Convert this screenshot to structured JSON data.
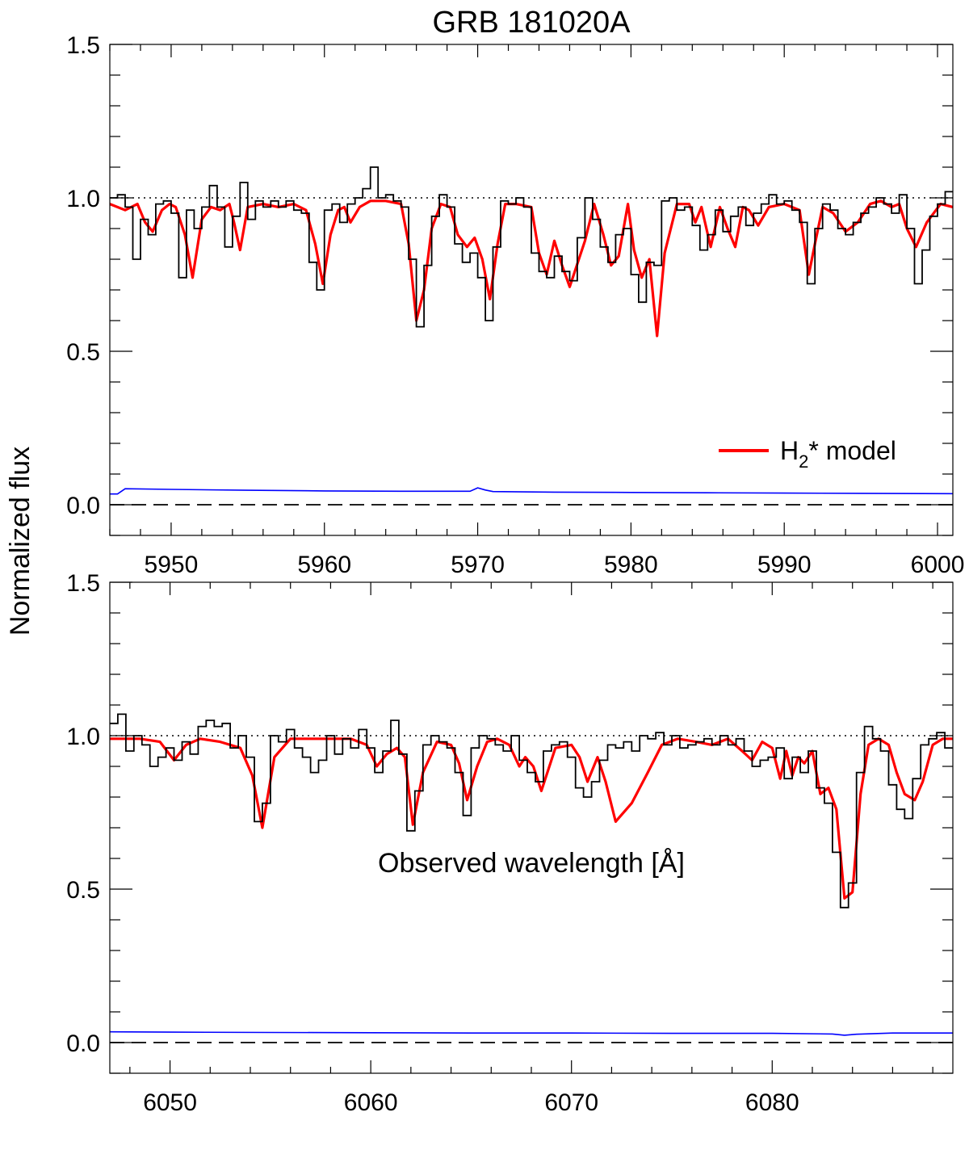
{
  "figure": {
    "title": "GRB 181020A",
    "ylabel": "Normalized flux",
    "xlabel": "Observed wavelength [Å]"
  },
  "legend": {
    "label_prefix": "H",
    "label_sub": "2",
    "label_suffix": "* model",
    "color": "#ff0000"
  },
  "colors": {
    "data": "#000000",
    "model": "#ff0000",
    "error": "#0000ff"
  },
  "chart_data": [
    {
      "type": "line",
      "xlim": [
        5946,
        6001
      ],
      "ylim": [
        -0.1,
        1.5
      ],
      "xticks": [
        5950,
        5960,
        5970,
        5980,
        5990,
        6000
      ],
      "yticks": [
        0.0,
        0.5,
        1.0,
        1.5
      ],
      "ytick_labels": [
        "0.0",
        "0.5",
        "1.0",
        "1.5"
      ],
      "continuum_level": 1.0,
      "zero_level": 0.0,
      "series": [
        {
          "name": "H2* model",
          "style": "model",
          "x": [
            5946.0,
            5947.0,
            5947.8,
            5948.3,
            5948.8,
            5949.4,
            5949.9,
            5950.3,
            5950.9,
            5951.4,
            5952.0,
            5952.6,
            5953.2,
            5953.8,
            5954.1,
            5954.5,
            5955.0,
            5956.0,
            5957.0,
            5958.0,
            5958.8,
            5959.4,
            5959.9,
            5960.4,
            5960.9,
            5961.3,
            5961.7,
            5962.3,
            5963.0,
            5964.0,
            5965.0,
            5965.5,
            5966.0,
            5966.5,
            5967.0,
            5967.6,
            5968.2,
            5968.7,
            5969.3,
            5969.8,
            5970.3,
            5970.8,
            5971.3,
            5971.8,
            5972.5,
            5973.5,
            5974.0,
            5974.5,
            5975.0,
            5975.5,
            5976.0,
            5977.0,
            5977.6,
            5978.2,
            5978.7,
            5979.2,
            5979.8,
            5980.2,
            5980.7,
            5981.2,
            5981.7,
            5982.2,
            5983.0,
            5983.8,
            5984.2,
            5984.6,
            5985.2,
            5985.8,
            5986.3,
            5986.8,
            5987.3,
            5987.7,
            5988.3,
            5989.0,
            5990.0,
            5991.0,
            5991.6,
            5992.0,
            5992.5,
            5993.2,
            5994.0,
            5994.8,
            5995.6,
            5996.3,
            5997.0,
            5997.5,
            5998.0,
            5998.6,
            5999.3,
            6000.2,
            6001.0
          ],
          "y": [
            0.98,
            0.96,
            0.98,
            0.92,
            0.89,
            0.96,
            0.98,
            0.97,
            0.88,
            0.74,
            0.93,
            0.97,
            0.96,
            0.98,
            0.92,
            0.83,
            0.97,
            0.98,
            0.97,
            0.98,
            0.96,
            0.85,
            0.72,
            0.88,
            0.96,
            0.97,
            0.92,
            0.97,
            0.99,
            0.99,
            0.98,
            0.85,
            0.6,
            0.7,
            0.9,
            0.98,
            0.97,
            0.88,
            0.84,
            0.87,
            0.8,
            0.67,
            0.85,
            0.98,
            0.98,
            0.97,
            0.82,
            0.75,
            0.86,
            0.78,
            0.71,
            0.86,
            0.98,
            0.88,
            0.78,
            0.81,
            0.98,
            0.83,
            0.74,
            0.8,
            0.55,
            0.82,
            0.98,
            0.98,
            0.92,
            0.97,
            0.84,
            0.97,
            0.9,
            0.84,
            0.97,
            0.96,
            0.91,
            0.97,
            0.98,
            0.96,
            0.75,
            0.85,
            0.97,
            0.95,
            0.89,
            0.92,
            0.98,
            0.99,
            0.97,
            0.98,
            0.9,
            0.84,
            0.92,
            0.98,
            0.97
          ]
        },
        {
          "name": "",
          "style": "data",
          "x": [
            5946.0,
            5946.5,
            5947.0,
            5947.5,
            5948.0,
            5948.5,
            5949.0,
            5949.5,
            5950.0,
            5950.5,
            5951.0,
            5951.5,
            5952.0,
            5952.5,
            5953.0,
            5953.5,
            5954.0,
            5954.5,
            5955.0,
            5955.5,
            5956.0,
            5956.5,
            5957.0,
            5957.5,
            5958.0,
            5958.5,
            5959.0,
            5959.5,
            5960.0,
            5960.5,
            5961.0,
            5961.5,
            5962.0,
            5962.5,
            5963.0,
            5963.5,
            5964.0,
            5964.5,
            5965.0,
            5965.5,
            5966.0,
            5966.5,
            5967.0,
            5967.5,
            5968.0,
            5968.5,
            5969.0,
            5969.5,
            5970.0,
            5970.5,
            5971.0,
            5971.5,
            5972.0,
            5972.5,
            5973.0,
            5973.5,
            5974.0,
            5974.5,
            5975.0,
            5975.5,
            5976.0,
            5976.5,
            5977.0,
            5977.5,
            5978.0,
            5978.5,
            5979.0,
            5979.5,
            5980.0,
            5980.5,
            5981.0,
            5981.5,
            5982.0,
            5982.5,
            5983.0,
            5983.5,
            5984.0,
            5984.5,
            5985.0,
            5985.5,
            5986.0,
            5986.5,
            5987.0,
            5987.5,
            5988.0,
            5988.5,
            5989.0,
            5989.5,
            5990.0,
            5990.5,
            5991.0,
            5991.5,
            5992.0,
            5992.5,
            5993.0,
            5993.5,
            5994.0,
            5994.5,
            5995.0,
            5995.5,
            5996.0,
            5996.5,
            5997.0,
            5997.5,
            5998.0,
            5998.5,
            5999.0,
            5999.5,
            6000.0,
            6000.5
          ],
          "y": [
            1.0,
            1.01,
            0.97,
            0.8,
            0.93,
            0.88,
            0.98,
            0.99,
            0.95,
            0.74,
            0.96,
            0.9,
            0.97,
            1.04,
            0.97,
            0.84,
            0.94,
            1.05,
            0.93,
            0.99,
            0.97,
            0.99,
            0.97,
            0.99,
            0.96,
            0.95,
            0.79,
            0.7,
            0.96,
            0.98,
            0.92,
            0.98,
            1.0,
            1.03,
            1.1,
            1.0,
            1.01,
            0.99,
            0.97,
            0.8,
            0.58,
            0.78,
            0.94,
            1.01,
            0.97,
            0.85,
            0.79,
            0.82,
            0.74,
            0.6,
            0.84,
            0.99,
            0.98,
            1.0,
            0.97,
            0.82,
            0.76,
            0.74,
            0.81,
            0.76,
            0.73,
            0.87,
            1.0,
            0.93,
            0.84,
            0.79,
            0.88,
            0.9,
            0.75,
            0.66,
            0.79,
            0.78,
            0.99,
            1.0,
            0.96,
            0.97,
            0.91,
            0.83,
            0.88,
            0.96,
            0.89,
            0.94,
            0.97,
            0.91,
            0.95,
            0.98,
            1.01,
            0.98,
            0.99,
            0.96,
            0.92,
            0.72,
            0.9,
            0.98,
            0.96,
            0.9,
            0.88,
            0.92,
            0.95,
            0.97,
            1.0,
            0.98,
            0.95,
            1.01,
            0.9,
            0.72,
            0.83,
            0.94,
            0.98,
            1.02
          ]
        },
        {
          "name": "",
          "style": "error",
          "x": [
            5946.0,
            5946.5,
            5947.0,
            5950.0,
            5955.0,
            5960.0,
            5965.0,
            5969.5,
            5970.0,
            5970.5,
            5971.0,
            5975.0,
            5980.0,
            5985.0,
            5990.0,
            5995.0,
            6001.0
          ],
          "y": [
            0.035,
            0.035,
            0.052,
            0.05,
            0.047,
            0.045,
            0.044,
            0.044,
            0.055,
            0.048,
            0.043,
            0.041,
            0.04,
            0.039,
            0.038,
            0.037,
            0.036
          ]
        }
      ]
    },
    {
      "type": "line",
      "xlim": [
        6047,
        6089
      ],
      "ylim": [
        -0.1,
        1.5
      ],
      "xticks": [
        6050,
        6060,
        6070,
        6080
      ],
      "yticks": [
        0.0,
        0.5,
        1.0,
        1.5
      ],
      "ytick_labels": [
        "0.0",
        "0.5",
        "1.0",
        "1.5"
      ],
      "continuum_level": 1.0,
      "zero_level": 0.0,
      "series": [
        {
          "name": "H2* model",
          "style": "model",
          "x": [
            6047.0,
            6048.5,
            6049.5,
            6050.2,
            6050.8,
            6051.5,
            6052.5,
            6053.5,
            6054.1,
            6054.6,
            6055.2,
            6056.0,
            6057.0,
            6058.0,
            6059.0,
            6059.8,
            6060.3,
            6060.8,
            6061.3,
            6061.7,
            6062.1,
            6062.6,
            6063.3,
            6064.0,
            6064.4,
            6064.8,
            6065.3,
            6065.8,
            6066.3,
            6066.9,
            6067.4,
            6067.7,
            6068.1,
            6068.5,
            6069.2,
            6070.0,
            6070.4,
            6070.8,
            6071.3,
            6071.7,
            6072.2,
            6073.0,
            6073.8,
            6074.5,
            6075.3,
            6076.2,
            6077.0,
            6077.8,
            6078.5,
            6079.0,
            6079.5,
            6080.0,
            6080.4,
            6080.7,
            6081.0,
            6081.3,
            6081.6,
            6082.0,
            6082.4,
            6082.8,
            6083.2,
            6083.6,
            6084.0,
            6084.4,
            6084.8,
            6085.3,
            6085.8,
            6086.2,
            6086.6,
            6087.1,
            6087.5,
            6088.0,
            6088.5,
            6089.0
          ],
          "y": [
            0.99,
            0.99,
            0.98,
            0.92,
            0.97,
            0.99,
            0.98,
            0.96,
            0.87,
            0.7,
            0.93,
            0.99,
            0.99,
            0.99,
            0.99,
            0.97,
            0.9,
            0.94,
            0.96,
            0.93,
            0.71,
            0.88,
            0.98,
            0.97,
            0.91,
            0.79,
            0.9,
            0.98,
            0.99,
            0.97,
            0.9,
            0.93,
            0.9,
            0.82,
            0.96,
            0.97,
            0.93,
            0.85,
            0.93,
            0.85,
            0.72,
            0.78,
            0.88,
            0.97,
            0.99,
            0.98,
            0.97,
            0.99,
            0.95,
            0.92,
            0.98,
            0.96,
            0.86,
            0.95,
            0.87,
            0.93,
            0.91,
            0.95,
            0.81,
            0.83,
            0.76,
            0.47,
            0.49,
            0.81,
            0.97,
            0.99,
            0.97,
            0.88,
            0.81,
            0.79,
            0.85,
            0.97,
            0.99,
            0.99
          ]
        },
        {
          "name": "",
          "style": "data",
          "x": [
            6047.0,
            6047.4,
            6047.8,
            6048.2,
            6048.6,
            6049.0,
            6049.4,
            6049.8,
            6050.2,
            6050.6,
            6051.0,
            6051.4,
            6051.8,
            6052.2,
            6052.6,
            6053.0,
            6053.4,
            6053.8,
            6054.2,
            6054.6,
            6055.0,
            6055.4,
            6055.8,
            6056.2,
            6056.6,
            6057.0,
            6057.4,
            6057.8,
            6058.2,
            6058.6,
            6059.0,
            6059.4,
            6059.8,
            6060.2,
            6060.6,
            6061.0,
            6061.4,
            6061.8,
            6062.2,
            6062.6,
            6063.0,
            6063.4,
            6063.8,
            6064.2,
            6064.6,
            6065.0,
            6065.4,
            6065.8,
            6066.2,
            6066.6,
            6067.0,
            6067.4,
            6067.8,
            6068.2,
            6068.6,
            6069.0,
            6069.4,
            6069.8,
            6070.2,
            6070.6,
            6071.0,
            6071.4,
            6071.8,
            6072.2,
            6072.6,
            6073.0,
            6073.4,
            6073.8,
            6074.2,
            6074.6,
            6075.0,
            6075.4,
            6075.8,
            6076.2,
            6076.6,
            6077.0,
            6077.4,
            6077.8,
            6078.2,
            6078.6,
            6079.0,
            6079.4,
            6079.8,
            6080.2,
            6080.6,
            6081.0,
            6081.4,
            6081.8,
            6082.2,
            6082.6,
            6083.0,
            6083.4,
            6083.8,
            6084.2,
            6084.6,
            6085.0,
            6085.4,
            6085.8,
            6086.2,
            6086.6,
            6087.0,
            6087.4,
            6087.8,
            6088.2,
            6088.6
          ],
          "y": [
            1.04,
            1.07,
            0.95,
            1.0,
            0.97,
            0.9,
            0.93,
            0.96,
            0.92,
            0.98,
            0.94,
            1.03,
            1.05,
            1.03,
            1.04,
            0.96,
            1.0,
            0.93,
            0.72,
            0.78,
            1.0,
            0.98,
            1.02,
            0.96,
            0.93,
            0.88,
            0.92,
            1.0,
            0.94,
            0.99,
            0.96,
            1.02,
            0.96,
            0.88,
            0.95,
            1.05,
            0.94,
            0.69,
            0.82,
            0.97,
            1.0,
            0.98,
            0.96,
            0.88,
            0.74,
            0.96,
            1.0,
            0.99,
            0.97,
            0.95,
            1.0,
            0.92,
            0.88,
            0.85,
            0.95,
            0.97,
            0.98,
            0.93,
            0.83,
            0.8,
            0.85,
            0.92,
            0.97,
            0.96,
            0.98,
            0.95,
            1.0,
            0.99,
            1.01,
            0.97,
            1.0,
            0.96,
            0.97,
            0.98,
            0.99,
            0.97,
            1.0,
            0.97,
            0.99,
            0.95,
            0.9,
            0.92,
            0.93,
            0.96,
            0.86,
            0.93,
            0.88,
            0.95,
            0.83,
            0.78,
            0.62,
            0.44,
            0.52,
            0.88,
            1.03,
            0.99,
            0.95,
            0.84,
            0.76,
            0.73,
            0.86,
            0.97,
            0.99,
            1.01,
            0.96
          ]
        },
        {
          "name": "",
          "style": "error",
          "x": [
            6047.0,
            6050.0,
            6055.0,
            6060.0,
            6065.0,
            6070.0,
            6075.0,
            6080.0,
            6083.0,
            6083.6,
            6084.2,
            6086.0,
            6089.0
          ],
          "y": [
            0.035,
            0.034,
            0.033,
            0.032,
            0.031,
            0.031,
            0.03,
            0.03,
            0.028,
            0.024,
            0.027,
            0.031,
            0.031
          ]
        }
      ]
    }
  ]
}
